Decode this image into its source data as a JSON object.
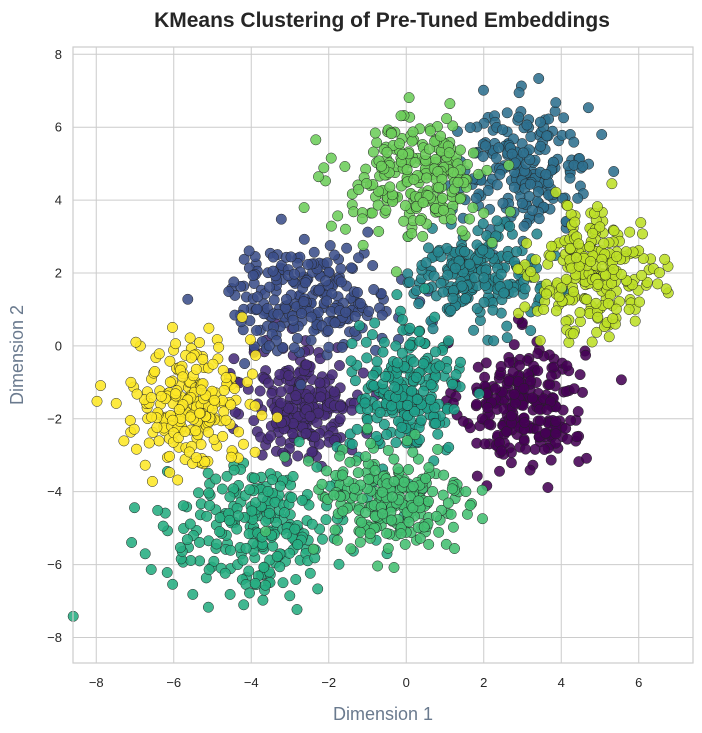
{
  "chart_data": {
    "type": "scatter",
    "title": "KMeans Clustering of Pre-Tuned Embeddings",
    "xlabel": "Dimension 1",
    "ylabel": "Dimension 2",
    "xlim": [
      -8.6,
      7.4
    ],
    "ylim": [
      -8.7,
      8.2
    ],
    "xticks": [
      "−8",
      "−6",
      "−4",
      "−2",
      "0",
      "2",
      "4",
      "6"
    ],
    "yticks": [
      "−8",
      "−6",
      "−4",
      "−2",
      "0",
      "2",
      "4",
      "6",
      "8"
    ],
    "grid": true,
    "legend": "none",
    "marker_edge_color": "#222222",
    "series": [
      {
        "cluster": 0,
        "color": "#440154",
        "center": [
          3.0,
          -1.6
        ],
        "spread": [
          1.1,
          1.2
        ],
        "count": 260
      },
      {
        "cluster": 1,
        "color": "#472c7a",
        "center": [
          -2.6,
          -1.6
        ],
        "spread": [
          1.0,
          1.1
        ],
        "count": 230
      },
      {
        "cluster": 2,
        "color": "#3b4f8a",
        "center": [
          -2.5,
          1.3
        ],
        "spread": [
          1.5,
          1.0
        ],
        "count": 240
      },
      {
        "cluster": 3,
        "color": "#2d6f8e",
        "center": [
          3.1,
          4.9
        ],
        "spread": [
          1.2,
          1.2
        ],
        "count": 210
      },
      {
        "cluster": 4,
        "color": "#25858e",
        "center": [
          1.8,
          1.9
        ],
        "spread": [
          1.1,
          0.9
        ],
        "count": 220
      },
      {
        "cluster": 5,
        "color": "#1f9e89",
        "center": [
          0.0,
          -1.3
        ],
        "spread": [
          1.0,
          1.2
        ],
        "count": 230
      },
      {
        "cluster": 6,
        "color": "#26ad81",
        "center": [
          -3.8,
          -5.0
        ],
        "spread": [
          1.7,
          1.2
        ],
        "count": 260
      },
      {
        "cluster": 7,
        "color": "#43bf71",
        "center": [
          -0.4,
          -4.3
        ],
        "spread": [
          1.4,
          1.1
        ],
        "count": 230
      },
      {
        "cluster": 8,
        "color": "#6ccd5a",
        "center": [
          0.2,
          4.6
        ],
        "spread": [
          1.3,
          1.1
        ],
        "count": 240
      },
      {
        "cluster": 9,
        "color": "#bddf26",
        "center": [
          4.9,
          2.0
        ],
        "spread": [
          1.1,
          1.2
        ],
        "count": 240
      },
      {
        "cluster": 10,
        "color": "#fde725",
        "center": [
          -5.6,
          -1.6
        ],
        "spread": [
          1.0,
          1.2
        ],
        "count": 230
      }
    ]
  }
}
